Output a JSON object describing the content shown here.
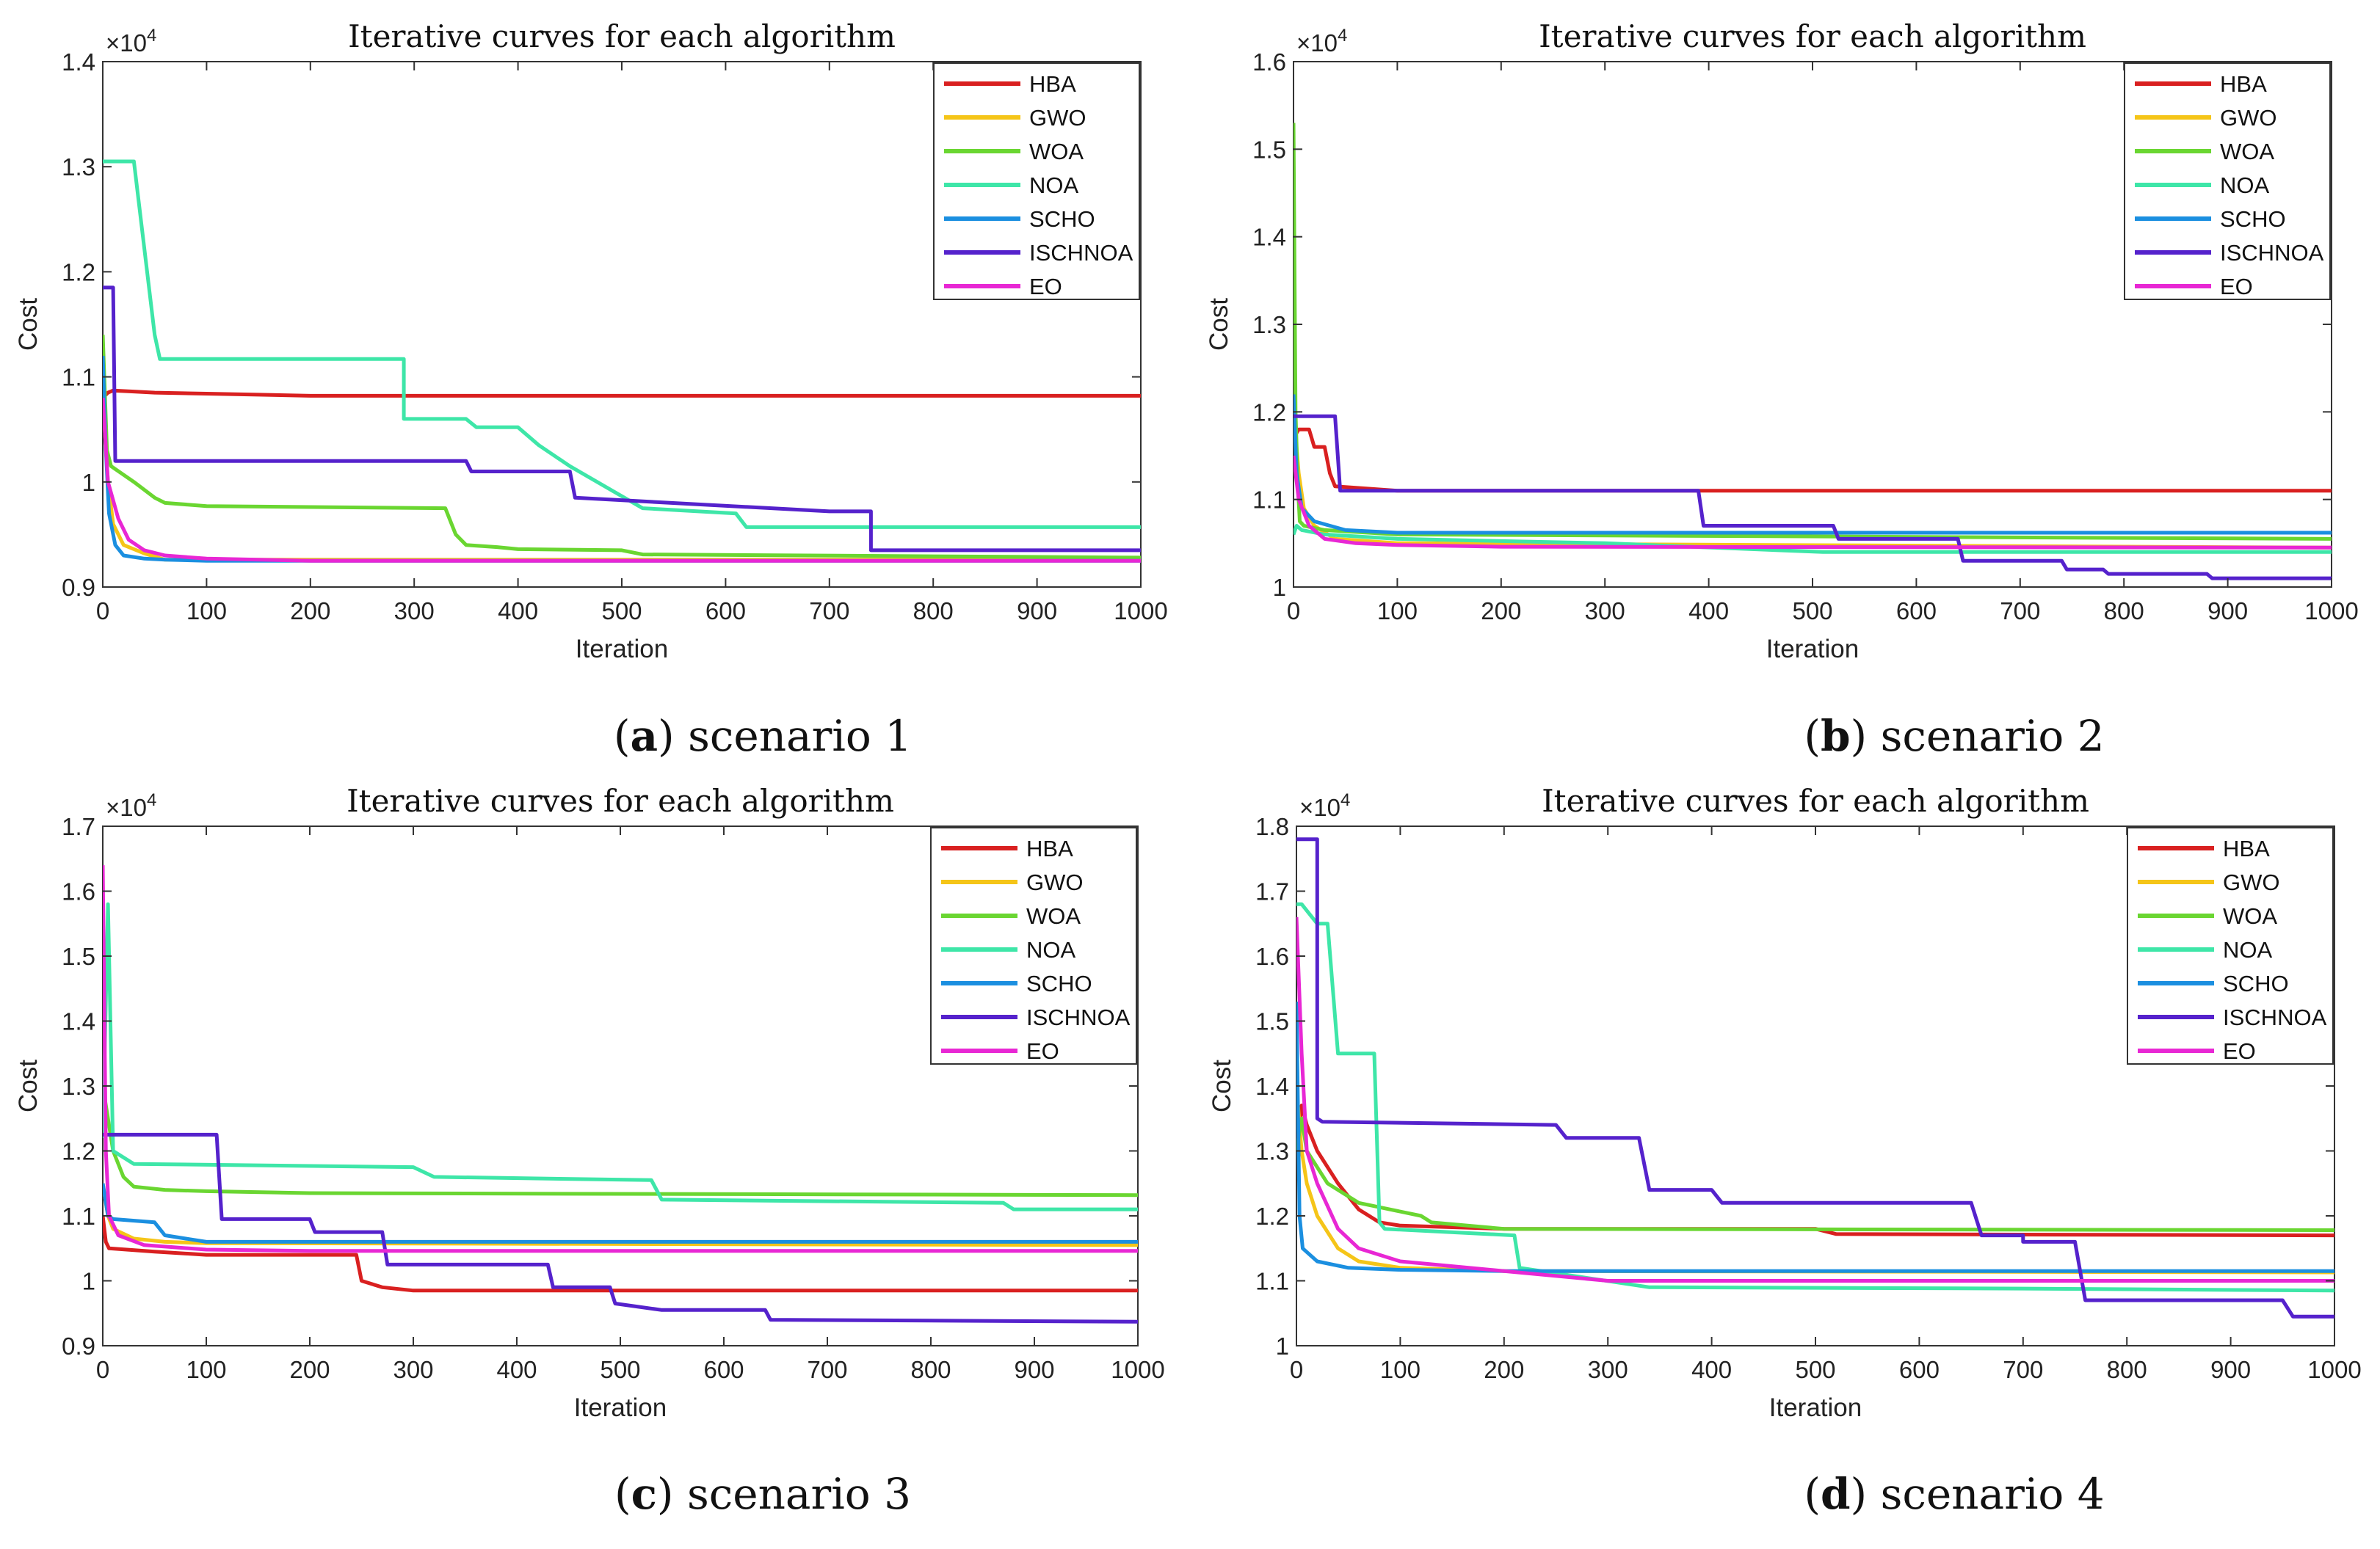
{
  "colors": {
    "HBA": "#d92020",
    "GWO": "#f5c518",
    "WOA": "#6ad631",
    "NOA": "#3ee6a8",
    "SCHO": "#1b8fe0",
    "ISCHNOA": "#5522cc",
    "EO": "#e827d4"
  },
  "chart_data": [
    {
      "type": "line",
      "title": "Iterative curves for each algorithm",
      "caption_letter": "a",
      "caption_text": " scenario 1",
      "xlabel": "Iteration",
      "ylabel": "Cost",
      "exponent": "×10",
      "exponent_power": "4",
      "xlim": [
        0,
        1000
      ],
      "ylim": [
        0.9,
        1.4
      ],
      "xticks": [
        0,
        100,
        200,
        300,
        400,
        500,
        600,
        700,
        800,
        900,
        1000
      ],
      "xtick_labels": [
        "0",
        "100",
        "200",
        "300",
        "400",
        "500",
        "600",
        "700",
        "800",
        "900",
        "1000"
      ],
      "yticks": [
        0.9,
        1.0,
        1.1,
        1.2,
        1.3,
        1.4
      ],
      "ytick_labels": [
        "0.9",
        "1",
        "1.1",
        "1.2",
        "1.3",
        "1.4"
      ],
      "series": [
        {
          "name": "HBA",
          "x": [
            0,
            5,
            10,
            30,
            50,
            100,
            150,
            200,
            1000
          ],
          "y": [
            1.08,
            1.085,
            1.087,
            1.086,
            1.085,
            1.084,
            1.083,
            1.082,
            1.082
          ]
        },
        {
          "name": "GWO",
          "x": [
            0,
            5,
            10,
            20,
            40,
            60,
            100,
            1000
          ],
          "y": [
            1.08,
            1.0,
            0.96,
            0.94,
            0.932,
            0.926,
            0.926,
            0.926
          ]
        },
        {
          "name": "WOA",
          "x": [
            0,
            4,
            8,
            30,
            50,
            60,
            100,
            330,
            340,
            350,
            380,
            400,
            500,
            520,
            1000
          ],
          "y": [
            1.14,
            1.03,
            1.015,
            1.0,
            0.985,
            0.98,
            0.977,
            0.975,
            0.95,
            0.94,
            0.938,
            0.936,
            0.935,
            0.931,
            0.928
          ]
        },
        {
          "name": "NOA",
          "x": [
            0,
            30,
            50,
            55,
            290,
            290,
            350,
            360,
            400,
            420,
            450,
            520,
            610,
            620,
            1000
          ],
          "y": [
            1.305,
            1.305,
            1.14,
            1.117,
            1.117,
            1.06,
            1.06,
            1.052,
            1.052,
            1.035,
            1.015,
            0.975,
            0.97,
            0.957,
            0.957
          ]
        },
        {
          "name": "SCHO",
          "x": [
            0,
            3,
            6,
            12,
            20,
            40,
            60,
            100,
            1000
          ],
          "y": [
            1.12,
            1.03,
            0.97,
            0.94,
            0.93,
            0.927,
            0.926,
            0.925,
            0.925
          ]
        },
        {
          "name": "ISCHNOA",
          "x": [
            0,
            10,
            12,
            30,
            350,
            355,
            450,
            455,
            700,
            740,
            740,
            1000
          ],
          "y": [
            1.185,
            1.185,
            1.02,
            1.02,
            1.02,
            1.01,
            1.01,
            0.985,
            0.972,
            0.972,
            0.935,
            0.935
          ]
        },
        {
          "name": "EO",
          "x": [
            0,
            5,
            15,
            25,
            40,
            60,
            100,
            200,
            1000
          ],
          "y": [
            1.08,
            1.0,
            0.965,
            0.945,
            0.935,
            0.93,
            0.927,
            0.925,
            0.925
          ]
        }
      ]
    },
    {
      "type": "line",
      "title": "Iterative curves for each algorithm",
      "caption_letter": "b",
      "caption_text": " scenario 2",
      "xlabel": "Iteration",
      "ylabel": "Cost",
      "exponent": "×10",
      "exponent_power": "4",
      "xlim": [
        0,
        1000
      ],
      "ylim": [
        1.0,
        1.6
      ],
      "xticks": [
        0,
        100,
        200,
        300,
        400,
        500,
        600,
        700,
        800,
        900,
        1000
      ],
      "xtick_labels": [
        "0",
        "100",
        "200",
        "300",
        "400",
        "500",
        "600",
        "700",
        "800",
        "900",
        "1000"
      ],
      "yticks": [
        1.0,
        1.1,
        1.2,
        1.3,
        1.4,
        1.5,
        1.6
      ],
      "ytick_labels": [
        "1",
        "1.1",
        "1.2",
        "1.3",
        "1.4",
        "1.5",
        "1.6"
      ],
      "series": [
        {
          "name": "HBA",
          "x": [
            0,
            5,
            15,
            20,
            30,
            35,
            40,
            100,
            1000
          ],
          "y": [
            1.17,
            1.18,
            1.18,
            1.16,
            1.16,
            1.13,
            1.115,
            1.11,
            1.11
          ]
        },
        {
          "name": "GWO",
          "x": [
            0,
            5,
            10,
            20,
            40,
            100,
            1000
          ],
          "y": [
            1.2,
            1.13,
            1.09,
            1.07,
            1.055,
            1.05,
            1.045
          ]
        },
        {
          "name": "WOA",
          "x": [
            0,
            2,
            4,
            6,
            10,
            30,
            100,
            1000
          ],
          "y": [
            1.53,
            1.2,
            1.12,
            1.075,
            1.07,
            1.065,
            1.06,
            1.055
          ]
        },
        {
          "name": "NOA",
          "x": [
            0,
            3,
            8,
            30,
            100,
            300,
            510,
            1000
          ],
          "y": [
            1.06,
            1.07,
            1.065,
            1.06,
            1.055,
            1.05,
            1.04,
            1.04
          ]
        },
        {
          "name": "SCHO",
          "x": [
            0,
            3,
            8,
            20,
            50,
            100,
            200,
            1000
          ],
          "y": [
            1.22,
            1.13,
            1.09,
            1.075,
            1.065,
            1.062,
            1.062,
            1.062
          ]
        },
        {
          "name": "ISCHNOA",
          "x": [
            0,
            5,
            40,
            45,
            390,
            395,
            520,
            525,
            640,
            645,
            740,
            745,
            780,
            785,
            880,
            885,
            910,
            910,
            1000
          ],
          "y": [
            1.195,
            1.195,
            1.195,
            1.11,
            1.11,
            1.07,
            1.07,
            1.055,
            1.055,
            1.03,
            1.03,
            1.02,
            1.02,
            1.015,
            1.015,
            1.01,
            1.01,
            1.01,
            1.01
          ]
        },
        {
          "name": "EO",
          "x": [
            0,
            5,
            15,
            30,
            60,
            100,
            200,
            1000
          ],
          "y": [
            1.15,
            1.1,
            1.07,
            1.055,
            1.05,
            1.048,
            1.046,
            1.045
          ]
        }
      ]
    },
    {
      "type": "line",
      "title": "Iterative curves for each algorithm",
      "caption_letter": "c",
      "caption_text": " scenario 3",
      "xlabel": "Iteration",
      "ylabel": "Cost",
      "exponent": "×10",
      "exponent_power": "4",
      "xlim": [
        0,
        1000
      ],
      "ylim": [
        0.9,
        1.7
      ],
      "xticks": [
        0,
        100,
        200,
        300,
        400,
        500,
        600,
        700,
        800,
        900,
        1000
      ],
      "xtick_labels": [
        "0",
        "100",
        "200",
        "300",
        "400",
        "500",
        "600",
        "700",
        "800",
        "900",
        "1000"
      ],
      "yticks": [
        0.9,
        1.0,
        1.1,
        1.2,
        1.3,
        1.4,
        1.5,
        1.6,
        1.7
      ],
      "ytick_labels": [
        "0.9",
        "1",
        "1.1",
        "1.2",
        "1.3",
        "1.4",
        "1.5",
        "1.6",
        "1.7"
      ],
      "series": [
        {
          "name": "HBA",
          "x": [
            0,
            3,
            6,
            50,
            100,
            245,
            250,
            270,
            300,
            1000
          ],
          "y": [
            1.1,
            1.06,
            1.05,
            1.045,
            1.04,
            1.04,
            1.0,
            0.99,
            0.985,
            0.985
          ]
        },
        {
          "name": "GWO",
          "x": [
            0,
            5,
            10,
            30,
            60,
            100,
            1000
          ],
          "y": [
            1.15,
            1.1,
            1.08,
            1.065,
            1.06,
            1.058,
            1.055
          ]
        },
        {
          "name": "WOA",
          "x": [
            0,
            5,
            10,
            20,
            30,
            60,
            100,
            200,
            1000
          ],
          "y": [
            1.3,
            1.25,
            1.2,
            1.16,
            1.145,
            1.14,
            1.138,
            1.135,
            1.132
          ]
        },
        {
          "name": "NOA",
          "x": [
            0,
            5,
            10,
            30,
            300,
            320,
            530,
            540,
            870,
            880,
            1000
          ],
          "y": [
            1.22,
            1.58,
            1.2,
            1.18,
            1.175,
            1.16,
            1.155,
            1.125,
            1.12,
            1.11,
            1.11
          ]
        },
        {
          "name": "SCHO",
          "x": [
            0,
            5,
            10,
            50,
            60,
            100,
            200,
            1000
          ],
          "y": [
            1.15,
            1.1,
            1.095,
            1.09,
            1.07,
            1.06,
            1.06,
            1.06
          ]
        },
        {
          "name": "ISCHNOA",
          "x": [
            0,
            5,
            110,
            115,
            200,
            205,
            270,
            275,
            430,
            435,
            490,
            495,
            540,
            545,
            640,
            645,
            1000
          ],
          "y": [
            1.225,
            1.225,
            1.225,
            1.095,
            1.095,
            1.075,
            1.075,
            1.025,
            1.025,
            0.99,
            0.99,
            0.965,
            0.955,
            0.955,
            0.955,
            0.94,
            0.937
          ]
        },
        {
          "name": "EO",
          "x": [
            0,
            3,
            6,
            15,
            40,
            100,
            200,
            1000
          ],
          "y": [
            1.64,
            1.2,
            1.1,
            1.07,
            1.055,
            1.048,
            1.046,
            1.046
          ]
        }
      ]
    },
    {
      "type": "line",
      "title": "Iterative curves for each algorithm",
      "caption_letter": "d",
      "caption_text": " scenario 4",
      "xlabel": "Iteration",
      "ylabel": "Cost",
      "exponent": "×10",
      "exponent_power": "4",
      "xlim": [
        0,
        1000
      ],
      "ylim": [
        1.0,
        1.8
      ],
      "xticks": [
        0,
        100,
        200,
        300,
        400,
        500,
        600,
        700,
        800,
        900,
        1000
      ],
      "xtick_labels": [
        "0",
        "100",
        "200",
        "300",
        "400",
        "500",
        "600",
        "700",
        "800",
        "900",
        "1000"
      ],
      "yticks": [
        1.0,
        1.1,
        1.2,
        1.3,
        1.4,
        1.5,
        1.6,
        1.7,
        1.8
      ],
      "ytick_labels": [
        "1",
        "1.1",
        "1.2",
        "1.3",
        "1.4",
        "1.5",
        "1.6",
        "1.7",
        "1.8"
      ],
      "series": [
        {
          "name": "HBA",
          "x": [
            0,
            5,
            10,
            20,
            40,
            60,
            80,
            100,
            200,
            500,
            520,
            1000
          ],
          "y": [
            1.3,
            1.37,
            1.34,
            1.3,
            1.25,
            1.21,
            1.19,
            1.185,
            1.18,
            1.18,
            1.172,
            1.17
          ]
        },
        {
          "name": "GWO",
          "x": [
            0,
            5,
            10,
            20,
            40,
            60,
            100,
            200,
            1000
          ],
          "y": [
            1.4,
            1.3,
            1.25,
            1.2,
            1.15,
            1.13,
            1.12,
            1.115,
            1.113
          ]
        },
        {
          "name": "WOA",
          "x": [
            0,
            5,
            10,
            30,
            60,
            90,
            120,
            130,
            200,
            1000
          ],
          "y": [
            1.3,
            1.35,
            1.3,
            1.25,
            1.22,
            1.21,
            1.2,
            1.19,
            1.18,
            1.178
          ]
        },
        {
          "name": "NOA",
          "x": [
            0,
            5,
            20,
            30,
            40,
            75,
            80,
            85,
            210,
            215,
            340,
            345,
            700,
            1000
          ],
          "y": [
            1.68,
            1.68,
            1.65,
            1.65,
            1.45,
            1.45,
            1.19,
            1.18,
            1.17,
            1.12,
            1.09,
            1.09,
            1.088,
            1.085
          ]
        },
        {
          "name": "SCHO",
          "x": [
            0,
            3,
            6,
            20,
            50,
            100,
            200,
            1000
          ],
          "y": [
            1.53,
            1.2,
            1.15,
            1.13,
            1.12,
            1.117,
            1.115,
            1.115
          ]
        },
        {
          "name": "ISCHNOA",
          "x": [
            0,
            20,
            20,
            25,
            250,
            260,
            330,
            340,
            400,
            410,
            650,
            660,
            700,
            700,
            750,
            760,
            950,
            960,
            1000
          ],
          "y": [
            1.78,
            1.78,
            1.35,
            1.345,
            1.34,
            1.32,
            1.32,
            1.24,
            1.24,
            1.22,
            1.22,
            1.17,
            1.17,
            1.16,
            1.16,
            1.07,
            1.07,
            1.045,
            1.045
          ]
        },
        {
          "name": "EO",
          "x": [
            0,
            5,
            10,
            20,
            40,
            60,
            100,
            200,
            300,
            1000
          ],
          "y": [
            1.66,
            1.45,
            1.3,
            1.25,
            1.18,
            1.15,
            1.13,
            1.115,
            1.1,
            1.1
          ]
        }
      ]
    }
  ]
}
